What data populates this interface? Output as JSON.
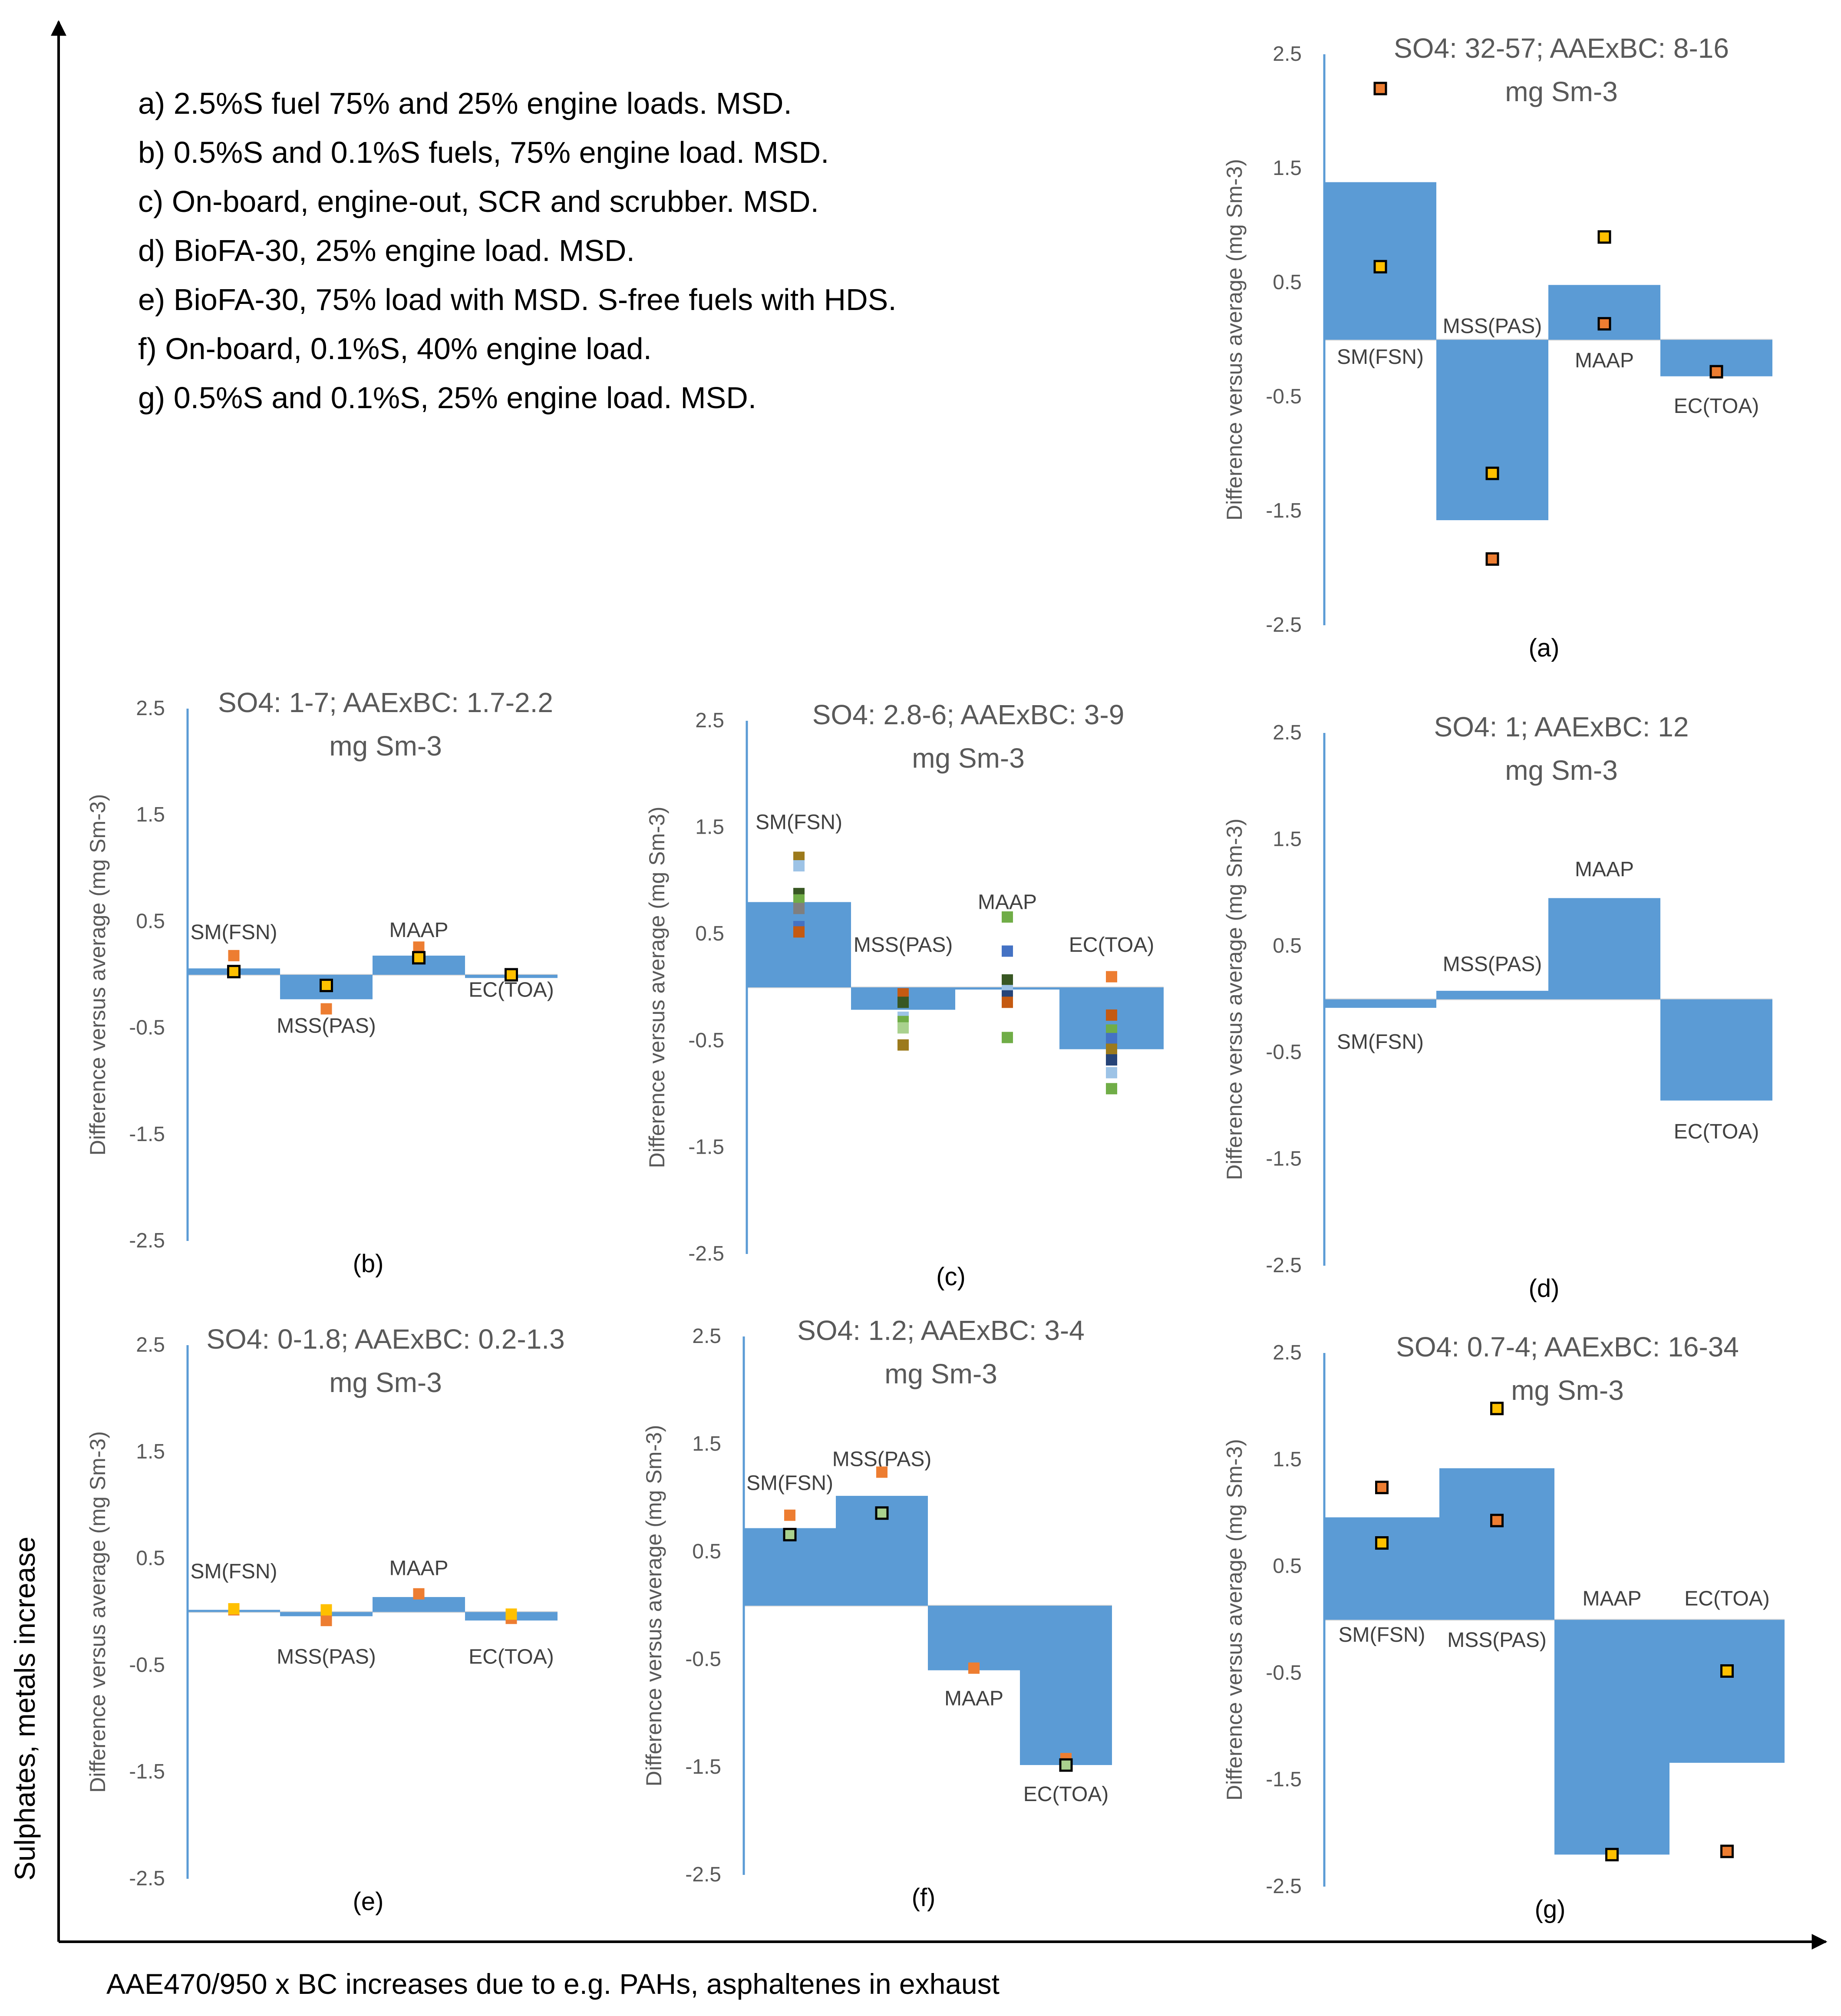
{
  "figure": {
    "y_axis_label": "Sulphates, metals increase",
    "x_axis_label": "AAE470/950 x BC increases due to e.g. PAHs, asphaltenes in exhaust",
    "legend_lines": [
      "a) 2.5%S fuel 75% and 25% engine loads. MSD.",
      "b) 0.5%S and 0.1%S fuels, 75% engine load. MSD.",
      "c) On-board, engine-out, SCR and scrubber. MSD.",
      "d) BioFA-30, 25% engine load. MSD.",
      "e) BioFA-30, 75% load with MSD. S-free fuels with HDS.",
      "f) On-board, 0.1%S, 40% engine load.",
      "g) 0.5%S and 0.1%S, 25% engine load. MSD."
    ]
  },
  "colors": {
    "bar": "#5B9BD5",
    "axis": "#5B9BD5",
    "text": "#595959",
    "arrow": "#000000",
    "orange": "#ED7D31",
    "yellow": "#FFC000",
    "green": "#A9D18E",
    "olive": "#9C7A1C",
    "lightblue": "#9DC3E6",
    "darkgreen": "#385723",
    "lime": "#70AD47",
    "navy": "#264478",
    "blue": "#4472C4",
    "brown": "#C55A11",
    "grey": "#7F7F7F"
  },
  "chart_data": [
    {
      "id": "a",
      "type": "bar",
      "caption": "(a)",
      "title_line1": "SO4: 32-57; AAExBC: 8-16",
      "title_line2": "mg Sm-3",
      "ylabel": "Difference versus average (mg Sm-3)",
      "ylim": [
        -2.5,
        2.5
      ],
      "ticks": [
        "2.5",
        "1.5",
        "0.5",
        "-0.5",
        "-1.5",
        "-2.5"
      ],
      "categories": [
        "SM(FSN)",
        "MSS(PAS)",
        "MAAP",
        "EC(TOA)"
      ],
      "values": [
        1.38,
        -1.58,
        0.48,
        -0.32
      ],
      "label_pos": [
        -0.15,
        0.12,
        -0.18,
        -0.58
      ],
      "points": [
        {
          "cat": 0,
          "y": 2.2,
          "fill": "orange",
          "outline": true
        },
        {
          "cat": 0,
          "y": 0.64,
          "fill": "yellow",
          "outline": true
        },
        {
          "cat": 1,
          "y": -1.17,
          "fill": "yellow",
          "outline": true
        },
        {
          "cat": 1,
          "y": -1.92,
          "fill": "orange",
          "outline": true
        },
        {
          "cat": 2,
          "y": 0.9,
          "fill": "yellow",
          "outline": true
        },
        {
          "cat": 2,
          "y": 0.14,
          "fill": "orange",
          "outline": true
        },
        {
          "cat": 3,
          "y": -0.28,
          "fill": "orange",
          "outline": true
        }
      ]
    },
    {
      "id": "b",
      "type": "bar",
      "caption": "(b)",
      "title_line1": "SO4: 1-7; AAExBC: 1.7-2.2",
      "title_line2": "mg Sm-3",
      "ylabel": "Difference versus average (mg Sm-3)",
      "ylim": [
        -2.5,
        2.5
      ],
      "ticks": [
        "2.5",
        "1.5",
        "0.5",
        "-0.5",
        "-1.5",
        "-2.5"
      ],
      "categories": [
        "SM(FSN)",
        "MSS(PAS)",
        "MAAP",
        "EC(TOA)"
      ],
      "values": [
        0.06,
        -0.23,
        0.18,
        -0.03
      ],
      "label_pos": [
        0.4,
        -0.48,
        0.42,
        -0.14
      ],
      "points": [
        {
          "cat": 0,
          "y": 0.18,
          "fill": "orange",
          "outline": false
        },
        {
          "cat": 0,
          "y": 0.03,
          "fill": "yellow",
          "outline": true
        },
        {
          "cat": 1,
          "y": -0.1,
          "fill": "yellow",
          "outline": true
        },
        {
          "cat": 1,
          "y": -0.32,
          "fill": "orange",
          "outline": false
        },
        {
          "cat": 2,
          "y": 0.26,
          "fill": "orange",
          "outline": false
        },
        {
          "cat": 2,
          "y": 0.16,
          "fill": "yellow",
          "outline": true
        },
        {
          "cat": 3,
          "y": 0.0,
          "fill": "orange",
          "outline": false
        },
        {
          "cat": 3,
          "y": 0.0,
          "fill": "yellow",
          "outline": true
        }
      ]
    },
    {
      "id": "c",
      "type": "bar",
      "caption": "(c)",
      "title_line1": "SO4: 2.8-6; AAExBC: 3-9",
      "title_line2": "mg Sm-3",
      "ylabel": "Difference versus average (mg Sm-3)",
      "ylim": [
        -2.5,
        2.5
      ],
      "ticks": [
        "2.5",
        "1.5",
        "0.5",
        "-0.5",
        "-1.5",
        "-2.5"
      ],
      "categories": [
        "SM(FSN)",
        "MSS(PAS)",
        "MAAP",
        "EC(TOA)"
      ],
      "values": [
        0.8,
        -0.21,
        -0.01,
        -0.58
      ],
      "label_pos": [
        1.55,
        0.4,
        0.8,
        0.4
      ],
      "points": [
        {
          "cat": 0,
          "y": 1.22,
          "fill": "olive",
          "outline": false
        },
        {
          "cat": 0,
          "y": 1.14,
          "fill": "lightblue",
          "outline": false
        },
        {
          "cat": 0,
          "y": 0.88,
          "fill": "darkgreen",
          "outline": false
        },
        {
          "cat": 0,
          "y": 0.82,
          "fill": "lime",
          "outline": false
        },
        {
          "cat": 0,
          "y": 0.74,
          "fill": "grey",
          "outline": false
        },
        {
          "cat": 0,
          "y": 0.57,
          "fill": "blue",
          "outline": false
        },
        {
          "cat": 0,
          "y": 0.52,
          "fill": "brown",
          "outline": false
        },
        {
          "cat": 1,
          "y": -0.06,
          "fill": "brown",
          "outline": false
        },
        {
          "cat": 1,
          "y": -0.14,
          "fill": "darkgreen",
          "outline": false
        },
        {
          "cat": 1,
          "y": -0.28,
          "fill": "lightblue",
          "outline": false
        },
        {
          "cat": 1,
          "y": -0.32,
          "fill": "lime",
          "outline": false
        },
        {
          "cat": 1,
          "y": -0.38,
          "fill": "green",
          "outline": false
        },
        {
          "cat": 1,
          "y": -0.54,
          "fill": "olive",
          "outline": false
        },
        {
          "cat": 2,
          "y": 0.66,
          "fill": "lime",
          "outline": false
        },
        {
          "cat": 2,
          "y": 0.34,
          "fill": "blue",
          "outline": false
        },
        {
          "cat": 2,
          "y": 0.07,
          "fill": "darkgreen",
          "outline": false
        },
        {
          "cat": 2,
          "y": -0.03,
          "fill": "lightblue",
          "outline": false
        },
        {
          "cat": 2,
          "y": -0.08,
          "fill": "navy",
          "outline": false
        },
        {
          "cat": 2,
          "y": -0.14,
          "fill": "brown",
          "outline": false
        },
        {
          "cat": 2,
          "y": -0.47,
          "fill": "lime",
          "outline": false
        },
        {
          "cat": 3,
          "y": 0.1,
          "fill": "orange",
          "outline": false
        },
        {
          "cat": 3,
          "y": -0.26,
          "fill": "brown",
          "outline": false
        },
        {
          "cat": 3,
          "y": -0.4,
          "fill": "lime",
          "outline": false
        },
        {
          "cat": 3,
          "y": -0.48,
          "fill": "blue",
          "outline": false
        },
        {
          "cat": 3,
          "y": -0.58,
          "fill": "olive",
          "outline": false
        },
        {
          "cat": 3,
          "y": -0.68,
          "fill": "navy",
          "outline": false
        },
        {
          "cat": 3,
          "y": -0.8,
          "fill": "lightblue",
          "outline": false
        },
        {
          "cat": 3,
          "y": -0.95,
          "fill": "lime",
          "outline": false
        }
      ]
    },
    {
      "id": "d",
      "type": "bar",
      "caption": "(d)",
      "title_line1": "SO4: 1; AAExBC: 12",
      "title_line2": "mg Sm-3",
      "ylabel": "Difference versus average (mg Sm-3)",
      "ylim": [
        -2.5,
        2.5
      ],
      "ticks": [
        "2.5",
        "1.5",
        "0.5",
        "-0.5",
        "-1.5",
        "-2.5"
      ],
      "categories": [
        "SM(FSN)",
        "MSS(PAS)",
        "MAAP",
        "EC(TOA)"
      ],
      "values": [
        -0.08,
        0.08,
        0.95,
        -0.95
      ],
      "label_pos": [
        -0.4,
        0.33,
        1.22,
        -1.24
      ],
      "points": []
    },
    {
      "id": "e",
      "type": "bar",
      "caption": "(e)",
      "title_line1": "SO4: 0-1.8; AAExBC: 0.2-1.3",
      "title_line2": "mg Sm-3",
      "ylabel": "Difference versus average (mg Sm-3)",
      "ylim": [
        -2.5,
        2.5
      ],
      "ticks": [
        "2.5",
        "1.5",
        "0.5",
        "-0.5",
        "-1.5",
        "-2.5"
      ],
      "categories": [
        "SM(FSN)",
        "MSS(PAS)",
        "MAAP",
        "EC(TOA)"
      ],
      "values": [
        0.02,
        -0.04,
        0.14,
        -0.08
      ],
      "label_pos": [
        0.38,
        -0.42,
        0.41,
        -0.42
      ],
      "points": [
        {
          "cat": 0,
          "y": 0.02,
          "fill": "orange",
          "outline": false
        },
        {
          "cat": 0,
          "y": 0.03,
          "fill": "yellow",
          "outline": false
        },
        {
          "cat": 1,
          "y": -0.08,
          "fill": "orange",
          "outline": false
        },
        {
          "cat": 1,
          "y": 0.02,
          "fill": "yellow",
          "outline": false
        },
        {
          "cat": 2,
          "y": 0.17,
          "fill": "orange",
          "outline": false
        },
        {
          "cat": 3,
          "y": -0.06,
          "fill": "orange",
          "outline": false
        },
        {
          "cat": 3,
          "y": -0.02,
          "fill": "yellow",
          "outline": false
        }
      ]
    },
    {
      "id": "f",
      "type": "bar",
      "caption": "(f)",
      "title_line1": "SO4: 1.2; AAExBC: 3-4",
      "title_line2": "mg Sm-3",
      "ylabel": "Difference versus average (mg Sm-3)",
      "ylim": [
        -2.5,
        2.5
      ],
      "ticks": [
        "2.5",
        "1.5",
        "0.5",
        "-0.5",
        "-1.5",
        "-2.5"
      ],
      "categories": [
        "SM(FSN)",
        "MSS(PAS)",
        "MAAP",
        "EC(TOA)"
      ],
      "values": [
        0.72,
        1.02,
        -0.6,
        -1.48
      ],
      "label_pos": [
        1.14,
        1.36,
        -0.86,
        -1.75
      ],
      "points": [
        {
          "cat": 0,
          "y": 0.84,
          "fill": "orange",
          "outline": false
        },
        {
          "cat": 0,
          "y": 0.66,
          "fill": "green",
          "outline": true
        },
        {
          "cat": 1,
          "y": 1.24,
          "fill": "orange",
          "outline": false
        },
        {
          "cat": 1,
          "y": 0.86,
          "fill": "green",
          "outline": true
        },
        {
          "cat": 2,
          "y": -0.58,
          "fill": "orange",
          "outline": false
        },
        {
          "cat": 3,
          "y": -1.42,
          "fill": "orange",
          "outline": false
        },
        {
          "cat": 3,
          "y": -1.48,
          "fill": "green",
          "outline": true
        }
      ]
    },
    {
      "id": "g",
      "type": "bar",
      "caption": "(g)",
      "title_line1": "SO4: 0.7-4; AAExBC: 16-34",
      "title_line2": "mg Sm-3",
      "ylabel": "Difference versus average (mg Sm-3)",
      "ylim": [
        -2.5,
        2.5
      ],
      "ticks": [
        "2.5",
        "1.5",
        "0.5",
        "-0.5",
        "-1.5",
        "-2.5"
      ],
      "categories": [
        "SM(FSN)",
        "MSS(PAS)",
        "MAAP",
        "EC(TOA)"
      ],
      "values": [
        0.96,
        1.42,
        -2.2,
        -1.34
      ],
      "label_pos": [
        -0.14,
        -0.19,
        0.2,
        0.2
      ],
      "points": [
        {
          "cat": 0,
          "y": 1.24,
          "fill": "orange",
          "outline": true
        },
        {
          "cat": 0,
          "y": 0.72,
          "fill": "yellow",
          "outline": true
        },
        {
          "cat": 1,
          "y": 1.98,
          "fill": "yellow",
          "outline": true
        },
        {
          "cat": 1,
          "y": 0.93,
          "fill": "orange",
          "outline": true
        },
        {
          "cat": 2,
          "y": -2.2,
          "fill": "yellow",
          "outline": true
        },
        {
          "cat": 3,
          "y": -0.48,
          "fill": "yellow",
          "outline": true
        },
        {
          "cat": 3,
          "y": -2.17,
          "fill": "orange",
          "outline": true
        }
      ]
    }
  ]
}
